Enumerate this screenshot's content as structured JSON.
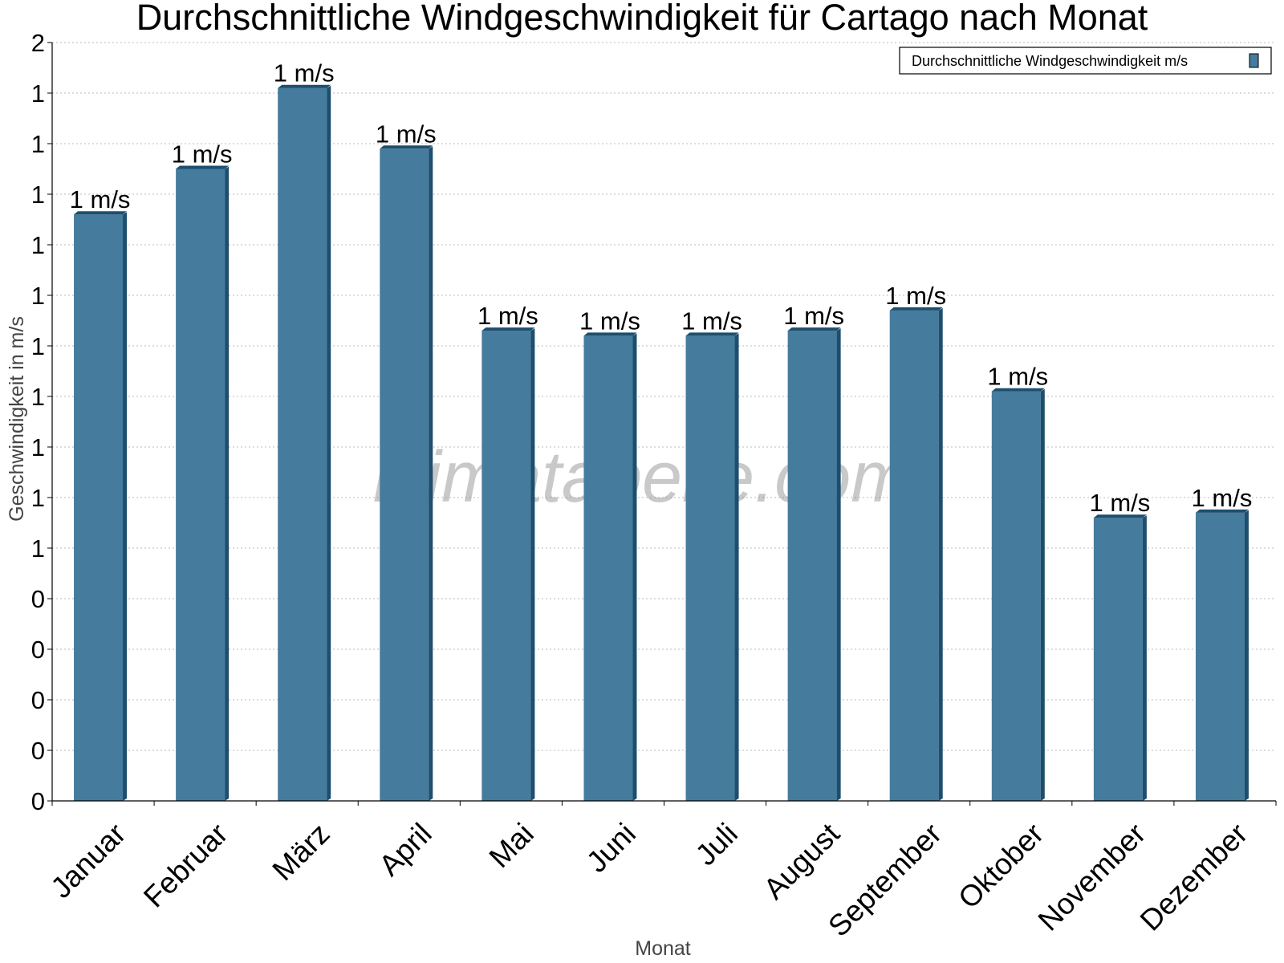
{
  "chart_data": {
    "type": "bar",
    "title": "Durchschnittliche Windgeschwindigkeit für Cartago nach Monat",
    "xlabel": "Monat",
    "ylabel": "Geschwindigkeit in m/s",
    "categories": [
      "Januar",
      "Februar",
      "März",
      "April",
      "Mai",
      "Juni",
      "Juli",
      "August",
      "September",
      "Oktober",
      "November",
      "Dezember"
    ],
    "series": [
      {
        "name": "Durchschnittliche Windgeschwindigkeit m/s",
        "values": [
          1.16,
          1.25,
          1.41,
          1.29,
          0.93,
          0.92,
          0.92,
          0.93,
          0.97,
          0.81,
          0.56,
          0.57
        ],
        "data_labels": [
          "1 m/s",
          "1 m/s",
          "1 m/s",
          "1 m/s",
          "1 m/s",
          "1 m/s",
          "1 m/s",
          "1 m/s",
          "1 m/s",
          "1 m/s",
          "1 m/s",
          "1 m/s"
        ]
      }
    ],
    "ylim": [
      0,
      1.5
    ],
    "yticks": [
      0,
      0.1,
      0.2,
      0.3,
      0.4,
      0.5,
      0.6,
      0.7,
      0.8,
      0.9,
      1.0,
      1.1,
      1.2,
      1.3,
      1.4,
      1.5
    ],
    "ytick_labels": [
      "0",
      "0",
      "0",
      "0",
      "0",
      "1",
      "1",
      "1",
      "1",
      "1",
      "1",
      "1",
      "1",
      "1",
      "1",
      "2"
    ],
    "grid": true,
    "legend": "top-right",
    "colors": {
      "bar": "#457b9d",
      "bar_side": "#1d4e6e",
      "bar_top": "#1d4e6e"
    },
    "watermark": "klimatabelle.com"
  }
}
